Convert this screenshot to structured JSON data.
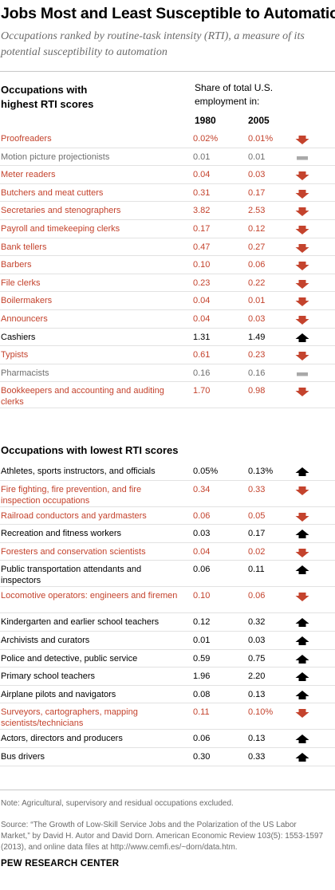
{
  "title": "Jobs Most and Least Susceptible to Automation",
  "subtitle": "Occupations ranked by routine-task intensity (RTI), a measure of its potential susceptibility to automation",
  "colors": {
    "down": "#c4432d",
    "up": "#000000",
    "flat": "#6f6f6f",
    "unchanged_bar": "#a9a9a9"
  },
  "high_section": {
    "heading": "Occupations with highest RTI scores",
    "caption": "Share of total U.S. employment in:",
    "year1": "1980",
    "year2": "2005",
    "rows": [
      {
        "name": "Proofreaders",
        "v1980": "0.02%",
        "v2005": "0.01%",
        "trend": "down",
        "icon": "down-arrow-icon"
      },
      {
        "name": "Motion picture projectionists",
        "v1980": "0.01",
        "v2005": "0.01",
        "trend": "flat",
        "icon": "no-change-icon"
      },
      {
        "name": "Meter readers",
        "v1980": "0.04",
        "v2005": "0.03",
        "trend": "down",
        "icon": "down-arrow-icon"
      },
      {
        "name": "Butchers and meat cutters",
        "v1980": "0.31",
        "v2005": "0.17",
        "trend": "down",
        "icon": "down-arrow-icon"
      },
      {
        "name": "Secretaries and stenographers",
        "v1980": "3.82",
        "v2005": "2.53",
        "trend": "down",
        "icon": "down-arrow-icon"
      },
      {
        "name": "Payroll and timekeeping clerks",
        "v1980": "0.17",
        "v2005": "0.12",
        "trend": "down",
        "icon": "down-arrow-icon"
      },
      {
        "name": "Bank tellers",
        "v1980": "0.47",
        "v2005": "0.27",
        "trend": "down",
        "icon": "down-arrow-icon"
      },
      {
        "name": "Barbers",
        "v1980": "0.10",
        "v2005": "0.06",
        "trend": "down",
        "icon": "down-arrow-icon"
      },
      {
        "name": "File clerks",
        "v1980": "0.23",
        "v2005": "0.22",
        "trend": "down",
        "icon": "down-arrow-icon"
      },
      {
        "name": "Boilermakers",
        "v1980": "0.04",
        "v2005": "0.01",
        "trend": "down",
        "icon": "down-arrow-icon"
      },
      {
        "name": "Announcers",
        "v1980": "0.04",
        "v2005": "0.03",
        "trend": "down",
        "icon": "down-arrow-icon"
      },
      {
        "name": "Cashiers",
        "v1980": "1.31",
        "v2005": "1.49",
        "trend": "up",
        "icon": "up-arrow-icon"
      },
      {
        "name": "Typists",
        "v1980": "0.61",
        "v2005": "0.23",
        "trend": "down",
        "icon": "down-arrow-icon"
      },
      {
        "name": "Pharmacists",
        "v1980": "0.16",
        "v2005": "0.16",
        "trend": "flat",
        "icon": "no-change-icon"
      },
      {
        "name": "Bookkeepers and accounting and auditing clerks",
        "v1980": "1.70",
        "v2005": "0.98",
        "trend": "down",
        "icon": "down-arrow-icon"
      }
    ]
  },
  "low_section": {
    "heading": "Occupations with lowest RTI scores",
    "rows": [
      {
        "name": "Athletes, sports instructors, and officials",
        "v1980": "0.05%",
        "v2005": "0.13%",
        "trend": "up",
        "icon": "up-arrow-icon"
      },
      {
        "name": "Fire fighting, fire prevention, and fire inspection occupations",
        "v1980": "0.34",
        "v2005": "0.33",
        "trend": "down",
        "icon": "down-arrow-icon"
      },
      {
        "name": "Railroad conductors and yardmasters",
        "v1980": "0.06",
        "v2005": "0.05",
        "trend": "down",
        "icon": "down-arrow-icon"
      },
      {
        "name": "Recreation and fitness workers",
        "v1980": "0.03",
        "v2005": "0.17",
        "trend": "up",
        "icon": "up-arrow-icon"
      },
      {
        "name": "Foresters and conservation scientists",
        "v1980": "0.04",
        "v2005": "0.02",
        "trend": "down",
        "icon": "down-arrow-icon"
      },
      {
        "name": "Public transportation attendants and inspectors",
        "v1980": "0.06",
        "v2005": "0.11",
        "trend": "up",
        "icon": "up-arrow-icon"
      },
      {
        "name": "Locomotive operators: engineers and firemen",
        "v1980": "0.10",
        "v2005": "0.06",
        "trend": "down",
        "icon": "down-arrow-icon"
      },
      {
        "name": "Kindergarten and earlier school teachers",
        "v1980": "0.12",
        "v2005": "0.32",
        "trend": "up",
        "icon": "up-arrow-icon"
      },
      {
        "name": "Archivists and curators",
        "v1980": "0.01",
        "v2005": "0.03",
        "trend": "up",
        "icon": "up-arrow-icon"
      },
      {
        "name": "Police and detective, public service",
        "v1980": "0.59",
        "v2005": "0.75",
        "trend": "up",
        "icon": "up-arrow-icon"
      },
      {
        "name": "Primary school teachers",
        "v1980": "1.96",
        "v2005": "2.20",
        "trend": "up",
        "icon": "up-arrow-icon"
      },
      {
        "name": "Airplane pilots and navigators",
        "v1980": "0.08",
        "v2005": "0.13",
        "trend": "up",
        "icon": "up-arrow-icon"
      },
      {
        "name": "Surveyors, cartographers, mapping scientists/technicians",
        "v1980": "0.11",
        "v2005": "0.10%",
        "trend": "down",
        "icon": "down-arrow-icon"
      },
      {
        "name": "Actors, directors and producers",
        "v1980": "0.06",
        "v2005": "0.13",
        "trend": "up",
        "icon": "up-arrow-icon"
      },
      {
        "name": "Bus drivers",
        "v1980": "0.30",
        "v2005": "0.33",
        "trend": "up",
        "icon": "up-arrow-icon"
      }
    ]
  },
  "note": "Note: Agricultural, supervisory and residual occupations excluded.",
  "source": "Source: “The Growth of Low-Skill Service Jobs and the Polarization of the US Labor Market,” by David H. Autor and David Dorn. American Economic Review 103(5): 1553-1597 (2013), and online data files at http://www.cemfi.es/~dorn/data.htm.",
  "brand": "PEW RESEARCH CENTER"
}
